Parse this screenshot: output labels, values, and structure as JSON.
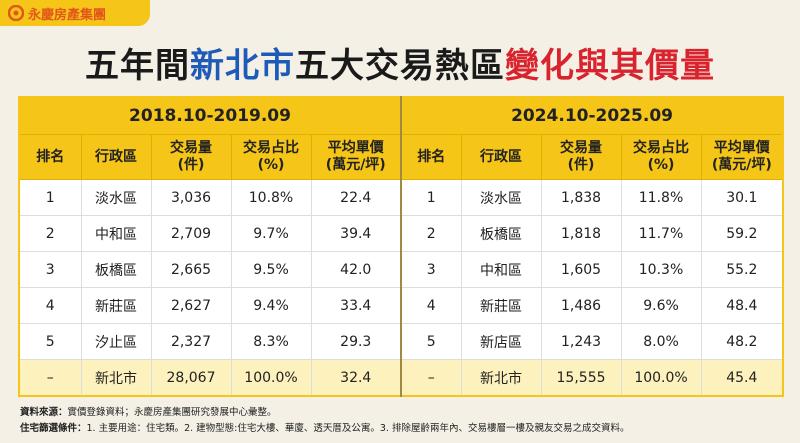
{
  "logo": "永慶房產集團",
  "title": {
    "parts": [
      "五年間",
      "新北市",
      "五大交易熱區",
      "變化與其價量"
    ]
  },
  "table": {
    "periods": [
      "2018.10-2019.09",
      "2024.10-2025.09"
    ],
    "columns": [
      {
        "name": "排名"
      },
      {
        "name": "行政區"
      },
      {
        "name": "交易量",
        "unit": "(件)"
      },
      {
        "name": "交易占比",
        "unit": "(%)"
      },
      {
        "name": "平均單價",
        "unit": "(萬元/坪)"
      }
    ],
    "rows": [
      [
        "1",
        "淡水區",
        "3,036",
        "10.8%",
        "22.4",
        "1",
        "淡水區",
        "1,838",
        "11.8%",
        "30.1"
      ],
      [
        "2",
        "中和區",
        "2,709",
        "9.7%",
        "39.4",
        "2",
        "板橋區",
        "1,818",
        "11.7%",
        "59.2"
      ],
      [
        "3",
        "板橋區",
        "2,665",
        "9.5%",
        "42.0",
        "3",
        "中和區",
        "1,605",
        "10.3%",
        "55.2"
      ],
      [
        "4",
        "新莊區",
        "2,627",
        "9.4%",
        "33.4",
        "4",
        "新莊區",
        "1,486",
        "9.6%",
        "48.4"
      ],
      [
        "5",
        "汐止區",
        "2,327",
        "8.3%",
        "29.3",
        "5",
        "新店區",
        "1,243",
        "8.0%",
        "48.2"
      ],
      [
        "–",
        "新北市",
        "28,067",
        "100.0%",
        "32.4",
        "–",
        "新北市",
        "15,555",
        "100.0%",
        "45.4"
      ]
    ]
  },
  "footnotes": [
    {
      "label": "資料來源：",
      "text": "實價登錄資料；永慶房產集團研究發展中心彙整。"
    },
    {
      "label": "住宅篩選條件：",
      "text": "1. 主要用途：住宅類。2. 建物型態:住宅大樓、華廈、透天厝及公寓。3. 排除屋齡兩年內、交易樓層一樓及親友交易之成交資料。"
    }
  ]
}
